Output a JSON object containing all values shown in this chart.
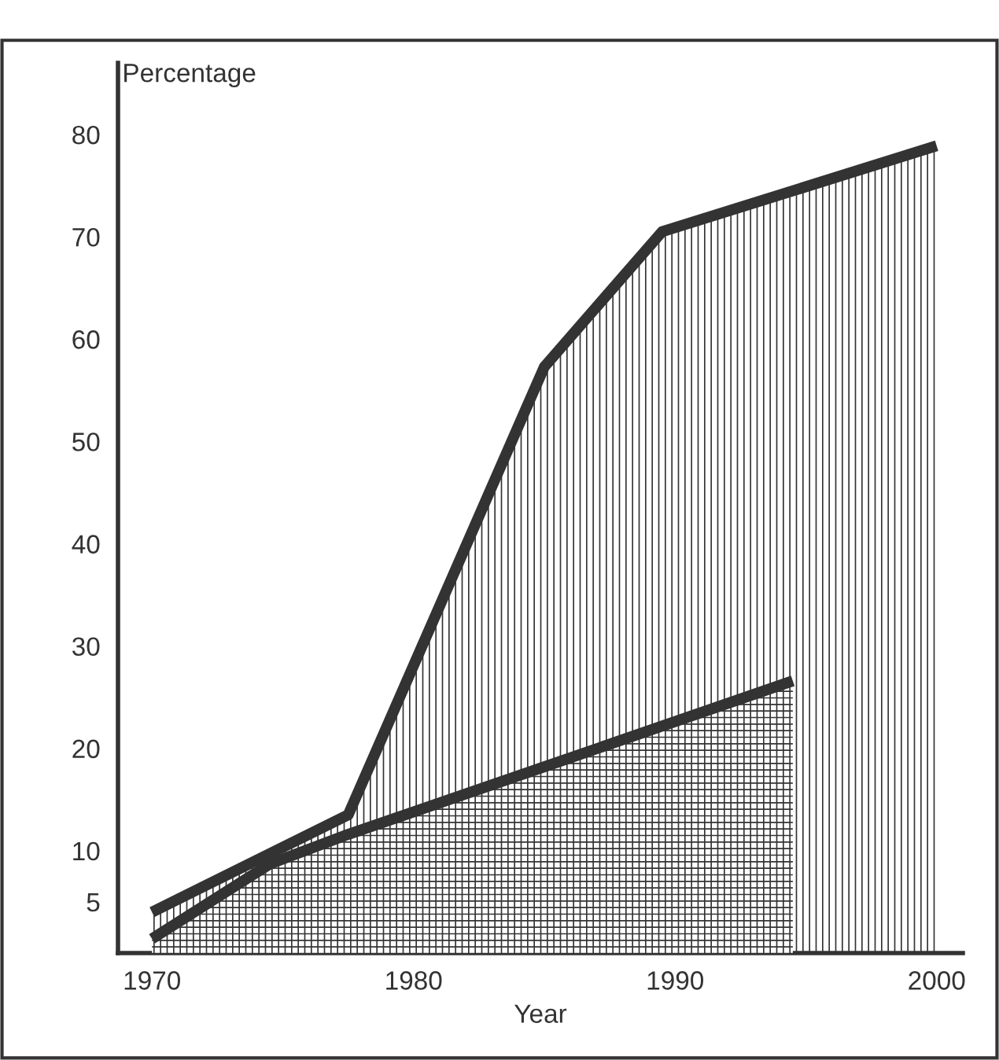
{
  "chart_data": {
    "type": "area",
    "xlabel": "Year",
    "ylabel": "Percentage",
    "series": [
      {
        "color": "#333333",
        "x": [
          1970,
          1977.5,
          1985,
          1989.5,
          2000
        ],
        "values": [
          4,
          13.5,
          57.3,
          70.5,
          78.9
        ]
      },
      {
        "color": "#333333",
        "x": [
          1970,
          1974.5,
          1977.5,
          1985,
          1994.5
        ],
        "values": [
          1.4,
          8.7,
          11.6,
          18.2,
          26.6
        ]
      }
    ],
    "xlim": [
      1968.7,
      2001
    ],
    "xticks": [
      1970,
      1980,
      1990,
      2000
    ],
    "ylim": [
      0,
      87
    ],
    "yticks": [
      5,
      10,
      20,
      30,
      40,
      50,
      60,
      70,
      80
    ],
    "grid": false
  }
}
